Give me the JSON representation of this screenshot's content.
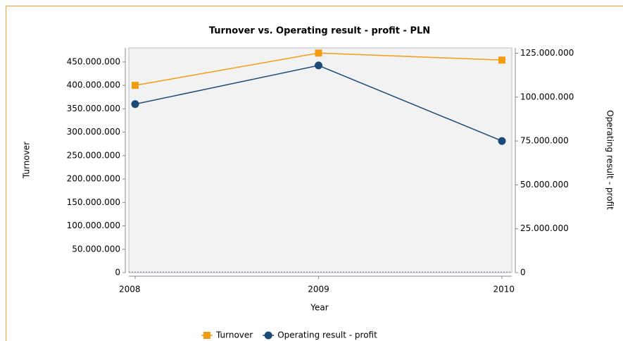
{
  "chart_data": {
    "type": "line",
    "title": "Turnover vs. Operating result - profit - PLN",
    "x_label": "Year",
    "y_label": "Turnover",
    "y2_label": "Operating result - profit",
    "categories": [
      "2008",
      "2009",
      "2010"
    ],
    "series": [
      {
        "name": "Turnover",
        "color": "#f39c12",
        "marker": "square",
        "values": [
          400000000,
          469000000,
          454000000
        ]
      },
      {
        "name": "Operating result - profit",
        "color": "#1b4a78",
        "marker": "circle",
        "axis": "y2",
        "values": [
          96000000,
          118000000,
          75000000
        ]
      }
    ],
    "ylim": [
      0,
      480000000
    ],
    "yticks": [
      0,
      {
        "value": 50000000,
        "label": "50.000.000"
      },
      {
        "value": 100000000,
        "label": "100.000.000"
      },
      {
        "value": 150000000,
        "label": "150.000.000"
      },
      {
        "value": 200000000,
        "label": "200.000.000"
      },
      {
        "value": 250000000,
        "label": "250.000.000"
      },
      {
        "value": 300000000,
        "label": "300.000.000"
      },
      {
        "value": 350000000,
        "label": "350.000.000"
      },
      {
        "value": 400000000,
        "label": "400.000.000"
      },
      {
        "value": 450000000,
        "label": "450.000.000"
      }
    ],
    "y2lim": [
      0,
      128000000
    ],
    "y2ticks": [
      0,
      {
        "value": 25000000,
        "label": "25.000.000"
      },
      {
        "value": 50000000,
        "label": "50.000.000"
      },
      {
        "value": 75000000,
        "label": "75.000.000"
      },
      {
        "value": 100000000,
        "label": "100.000.000"
      },
      {
        "value": 125000000,
        "label": "125.000.000"
      }
    ],
    "legend": "bottom"
  }
}
